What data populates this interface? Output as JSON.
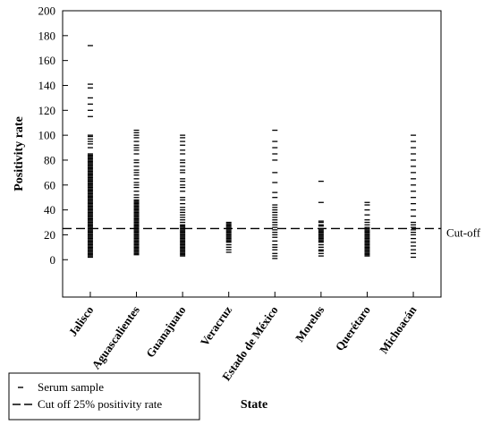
{
  "chart_data": {
    "type": "scatter",
    "ylabel": "Positivity rate",
    "xlabel": "State",
    "ylim": [
      -30,
      200
    ],
    "yticks": [
      0,
      20,
      40,
      60,
      80,
      100,
      120,
      140,
      160,
      180,
      200
    ],
    "categories": [
      "Jalisco",
      "Aguascalientes",
      "Guanajuato",
      "Veracruz",
      "Estado de México",
      "Morelos",
      "Querétaro",
      "Michoacán"
    ],
    "reference_line": {
      "value": 25,
      "label": "Cut-off"
    },
    "legend": {
      "placement": "bottom-left",
      "entries": [
        "Serum sample",
        "Cut off 25% positivity rate"
      ]
    },
    "series": [
      {
        "category": "Jalisco",
        "values": [
          2,
          3,
          4,
          5,
          6,
          7,
          8,
          9,
          10,
          11,
          12,
          13,
          14,
          15,
          16,
          17,
          18,
          19,
          20,
          21,
          22,
          23,
          24,
          25,
          26,
          27,
          28,
          29,
          30,
          31,
          32,
          33,
          34,
          35,
          36,
          37,
          38,
          39,
          40,
          41,
          42,
          43,
          44,
          45,
          46,
          47,
          48,
          49,
          50,
          51,
          52,
          53,
          54,
          55,
          56,
          57,
          58,
          59,
          60,
          61,
          62,
          63,
          64,
          65,
          66,
          67,
          68,
          69,
          70,
          71,
          72,
          73,
          74,
          75,
          76,
          77,
          78,
          79,
          80,
          81,
          82,
          83,
          84,
          85,
          90,
          93,
          95,
          97,
          99,
          100,
          115,
          120,
          125,
          130,
          138,
          141,
          172
        ]
      },
      {
        "category": "Aguascalientes",
        "values": [
          4,
          5,
          6,
          7,
          8,
          9,
          10,
          11,
          12,
          13,
          14,
          15,
          16,
          17,
          18,
          19,
          20,
          21,
          22,
          23,
          24,
          25,
          26,
          27,
          28,
          29,
          30,
          31,
          32,
          33,
          34,
          35,
          36,
          37,
          38,
          39,
          40,
          41,
          42,
          43,
          44,
          45,
          46,
          47,
          48,
          50,
          52,
          55,
          58,
          60,
          62,
          65,
          68,
          70,
          72,
          75,
          78,
          80,
          85,
          88,
          90,
          92,
          95,
          98,
          100,
          102,
          104
        ]
      },
      {
        "category": "Guanajuato",
        "values": [
          3,
          4,
          5,
          6,
          7,
          8,
          9,
          10,
          11,
          12,
          13,
          14,
          15,
          16,
          17,
          18,
          19,
          20,
          21,
          22,
          23,
          24,
          25,
          26,
          27,
          28,
          30,
          32,
          34,
          36,
          38,
          40,
          42,
          45,
          48,
          50,
          55,
          58,
          60,
          63,
          65,
          70,
          72,
          75,
          78,
          80,
          85,
          88,
          92,
          95,
          98,
          100
        ]
      },
      {
        "category": "Veracruz",
        "values": [
          6,
          8,
          10,
          12,
          14,
          15,
          16,
          17,
          18,
          19,
          20,
          21,
          22,
          23,
          24,
          25,
          26,
          27,
          28,
          29,
          30
        ]
      },
      {
        "category": "Estado de México",
        "values": [
          1,
          3,
          5,
          8,
          10,
          12,
          15,
          18,
          20,
          22,
          24,
          26,
          28,
          30,
          32,
          34,
          36,
          38,
          40,
          42,
          44,
          50,
          54,
          62,
          70,
          80,
          85,
          90,
          95,
          104
        ]
      },
      {
        "category": "Morelos",
        "values": [
          3,
          5,
          7,
          8,
          10,
          12,
          14,
          15,
          16,
          17,
          18,
          19,
          20,
          21,
          22,
          23,
          24,
          25,
          27,
          28,
          30,
          31,
          46,
          63
        ]
      },
      {
        "category": "Querétaro",
        "values": [
          3,
          4,
          5,
          6,
          7,
          8,
          9,
          10,
          11,
          12,
          13,
          14,
          15,
          16,
          17,
          18,
          19,
          20,
          21,
          22,
          23,
          24,
          25,
          26,
          28,
          30,
          32,
          36,
          40,
          44,
          46
        ]
      },
      {
        "category": "Michoacán",
        "values": [
          2,
          5,
          8,
          11,
          14,
          17,
          20,
          22,
          24,
          26,
          28,
          30,
          35,
          40,
          45,
          50,
          55,
          60,
          65,
          70,
          75,
          80,
          85,
          90,
          95,
          100
        ]
      }
    ]
  }
}
